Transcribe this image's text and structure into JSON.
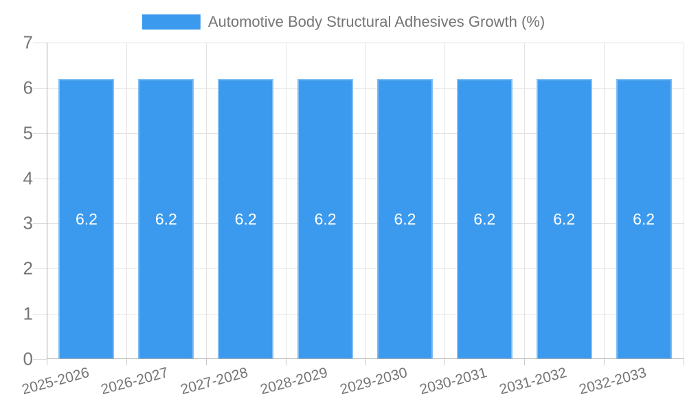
{
  "legend": {
    "label": "Automotive Body Structural Adhesives Growth (%)"
  },
  "colors": {
    "bar": "#3b9aee",
    "text": "#757575",
    "grid": "#e3e3e3",
    "axis": "#b0b0b0",
    "bar_label": "#ffffff"
  },
  "chart_data": {
    "type": "bar",
    "title": "Automotive Body Structural Adhesives Growth (%)",
    "categories": [
      "2025-2026",
      "2026-2027",
      "2027-2028",
      "2028-2029",
      "2029-2030",
      "2030-2031",
      "2031-2032",
      "2032-2033"
    ],
    "values": [
      6.2,
      6.2,
      6.2,
      6.2,
      6.2,
      6.2,
      6.2,
      6.2
    ],
    "bar_labels": [
      "6.2",
      "6.2",
      "6.2",
      "6.2",
      "6.2",
      "6.2",
      "6.2",
      "6.2"
    ],
    "xlabel": "",
    "ylabel": "",
    "ylim": [
      0,
      7
    ],
    "yticks": [
      "0",
      "1",
      "2",
      "3",
      "4",
      "5",
      "6",
      "7"
    ],
    "grid": true,
    "legend_position": "top",
    "bar_label_position": "center"
  }
}
